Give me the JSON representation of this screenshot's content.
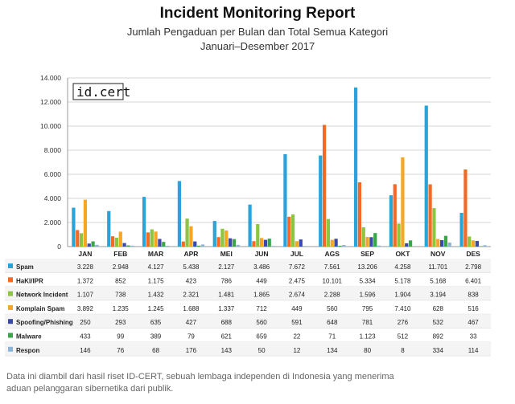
{
  "header": {
    "title": "Incident Monitoring Report",
    "subtitle_line1": "Jumlah Pengaduan per Bulan dan Total Semua Kategori",
    "subtitle_line2": "Januari–Desember 2017"
  },
  "logo_text": "id.cert",
  "footnote": {
    "line1": "Data ini diambil dari hasil riset ID-CERT, sebuah lembaga independen di Indonesia yang menerima",
    "line2": "aduan pelanggaran sibernetika dari publik."
  },
  "chart_data": {
    "type": "bar",
    "title": "Incident Monitoring Report",
    "categories": [
      "JAN",
      "FEB",
      "MAR",
      "APR",
      "MEI",
      "JUN",
      "JUL",
      "AGS",
      "SEP",
      "OKT",
      "NOV",
      "DES"
    ],
    "ylim": [
      0,
      14000
    ],
    "yticks": [
      0,
      2000,
      4000,
      6000,
      8000,
      10000,
      12000,
      14000
    ],
    "ytick_labels": [
      "0",
      "2.000",
      "4.000",
      "6.000",
      "8.000",
      "10.000",
      "12.000",
      "14.000"
    ],
    "grid": "horizontal",
    "legend": "table-below",
    "series": [
      {
        "name": "Spam",
        "color": "#2aa3d9",
        "values": [
          3228,
          2948,
          4127,
          5438,
          2127,
          3486,
          7672,
          7561,
          13206,
          4258,
          11701,
          2798
        ],
        "labels": [
          "3.228",
          "2.948",
          "4.127",
          "5.438",
          "2.127",
          "3.486",
          "7.672",
          "7.561",
          "13.206",
          "4.258",
          "11.701",
          "2.798"
        ]
      },
      {
        "name": "HaKI/IPR",
        "color": "#f26a24",
        "values": [
          1372,
          852,
          1175,
          423,
          786,
          449,
          2475,
          10101,
          5334,
          5178,
          5168,
          6401
        ],
        "labels": [
          "1.372",
          "852",
          "1.175",
          "423",
          "786",
          "449",
          "2.475",
          "10.101",
          "5.334",
          "5.178",
          "5.168",
          "6.401"
        ]
      },
      {
        "name": "Network Incident",
        "color": "#8cc63f",
        "values": [
          1107,
          738,
          1432,
          2321,
          1481,
          1865,
          2674,
          2288,
          1596,
          1904,
          3194,
          838
        ],
        "labels": [
          "1.107",
          "738",
          "1.432",
          "2.321",
          "1.481",
          "1.865",
          "2.674",
          "2.288",
          "1.596",
          "1.904",
          "3.194",
          "838"
        ]
      },
      {
        "name": "Komplain Spam",
        "color": "#f5a623",
        "values": [
          3892,
          1235,
          1245,
          1688,
          1337,
          712,
          449,
          560,
          795,
          7410,
          628,
          516
        ],
        "labels": [
          "3.892",
          "1.235",
          "1.245",
          "1.688",
          "1.337",
          "712",
          "449",
          "560",
          "795",
          "7.410",
          "628",
          "516"
        ]
      },
      {
        "name": "Spoofing/Phishing",
        "color": "#3a4aa8",
        "values": [
          250,
          293,
          635,
          427,
          688,
          560,
          591,
          648,
          781,
          276,
          532,
          467
        ],
        "labels": [
          "250",
          "293",
          "635",
          "427",
          "688",
          "560",
          "591",
          "648",
          "781",
          "276",
          "532",
          "467"
        ]
      },
      {
        "name": "Malware",
        "color": "#3aa64a",
        "values": [
          433,
          99,
          389,
          79,
          621,
          659,
          22,
          71,
          1123,
          512,
          892,
          33
        ],
        "labels": [
          "433",
          "99",
          "389",
          "79",
          "621",
          "659",
          "22",
          "71",
          "1.123",
          "512",
          "892",
          "33"
        ]
      },
      {
        "name": "Respon",
        "color": "#8ab4d8",
        "values": [
          146,
          76,
          68,
          176,
          143,
          50,
          12,
          134,
          80,
          8,
          334,
          114
        ],
        "labels": [
          "146",
          "76",
          "68",
          "176",
          "143",
          "50",
          "12",
          "134",
          "80",
          "8",
          "334",
          "114"
        ]
      }
    ]
  }
}
